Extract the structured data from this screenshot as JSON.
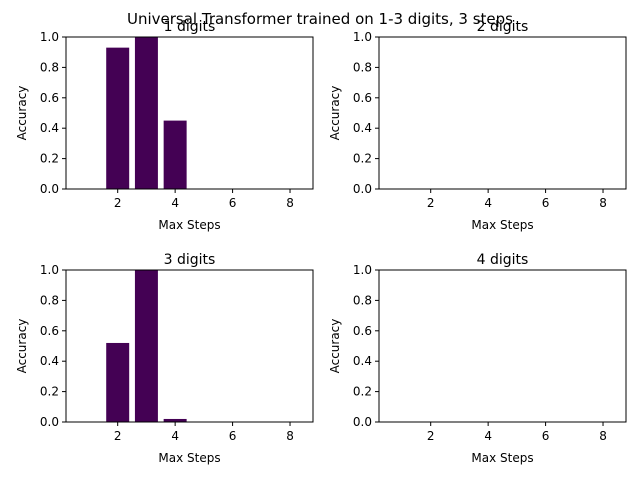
{
  "figure": {
    "suptitle": "Universal Transformer trained on 1-3 digits, 3 steps",
    "bar_color": "#440154"
  },
  "chart_data": [
    {
      "type": "bar",
      "title": "1 digits",
      "xlabel": "Max Steps",
      "ylabel": "Accuracy",
      "x": [
        2,
        3,
        4
      ],
      "values": [
        0.93,
        1.0,
        0.45
      ],
      "xlim": [
        0.2,
        8.8
      ],
      "ylim": [
        0,
        1.0
      ],
      "xticks": [
        "2",
        "4",
        "6",
        "8"
      ],
      "yticks": [
        "0.0",
        "0.2",
        "0.4",
        "0.6",
        "0.8",
        "1.0"
      ],
      "grid": false
    },
    {
      "type": "bar",
      "title": "2 digits",
      "xlabel": "Max Steps",
      "ylabel": "Accuracy",
      "x": [],
      "values": [],
      "xlim": [
        0.2,
        8.8
      ],
      "ylim": [
        0,
        1.0
      ],
      "xticks": [
        "2",
        "4",
        "6",
        "8"
      ],
      "yticks": [
        "0.0",
        "0.2",
        "0.4",
        "0.6",
        "0.8",
        "1.0"
      ],
      "grid": false
    },
    {
      "type": "bar",
      "title": "3 digits",
      "xlabel": "Max Steps",
      "ylabel": "Accuracy",
      "x": [
        2,
        3,
        4
      ],
      "values": [
        0.52,
        1.0,
        0.02
      ],
      "xlim": [
        0.2,
        8.8
      ],
      "ylim": [
        0,
        1.0
      ],
      "xticks": [
        "2",
        "4",
        "6",
        "8"
      ],
      "yticks": [
        "0.0",
        "0.2",
        "0.4",
        "0.6",
        "0.8",
        "1.0"
      ],
      "grid": false
    },
    {
      "type": "bar",
      "title": "4 digits",
      "xlabel": "Max Steps",
      "ylabel": "Accuracy",
      "x": [],
      "values": [],
      "xlim": [
        0.2,
        8.8
      ],
      "ylim": [
        0,
        1.0
      ],
      "xticks": [
        "2",
        "4",
        "6",
        "8"
      ],
      "yticks": [
        "0.0",
        "0.2",
        "0.4",
        "0.6",
        "0.8",
        "1.0"
      ],
      "grid": false
    }
  ]
}
